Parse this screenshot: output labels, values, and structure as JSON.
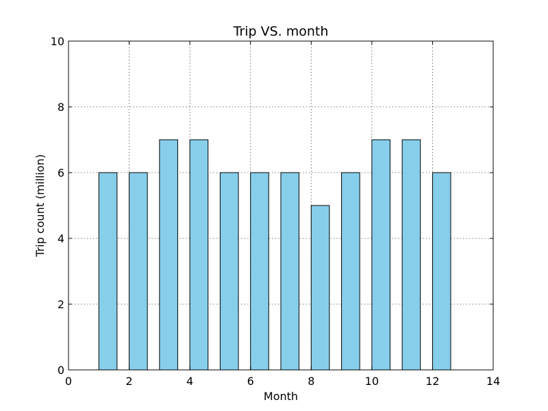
{
  "chart_data": {
    "type": "bar",
    "title": "Trip VS. month",
    "xlabel": "Month",
    "ylabel": "Trip count (million)",
    "x": [
      1,
      2,
      3,
      4,
      5,
      6,
      7,
      8,
      9,
      10,
      11,
      12
    ],
    "values": [
      6,
      6,
      7,
      7,
      6,
      6,
      6,
      5,
      6,
      7,
      7,
      6
    ],
    "bar_width": 0.6,
    "xlim": [
      0,
      14
    ],
    "ylim": [
      0,
      10
    ],
    "xticks": [
      0,
      2,
      4,
      6,
      8,
      10,
      12,
      14
    ],
    "yticks": [
      0,
      2,
      4,
      6,
      8,
      10
    ],
    "grid": true,
    "bar_color": "#87ceeb",
    "edge_color": "#000000"
  }
}
